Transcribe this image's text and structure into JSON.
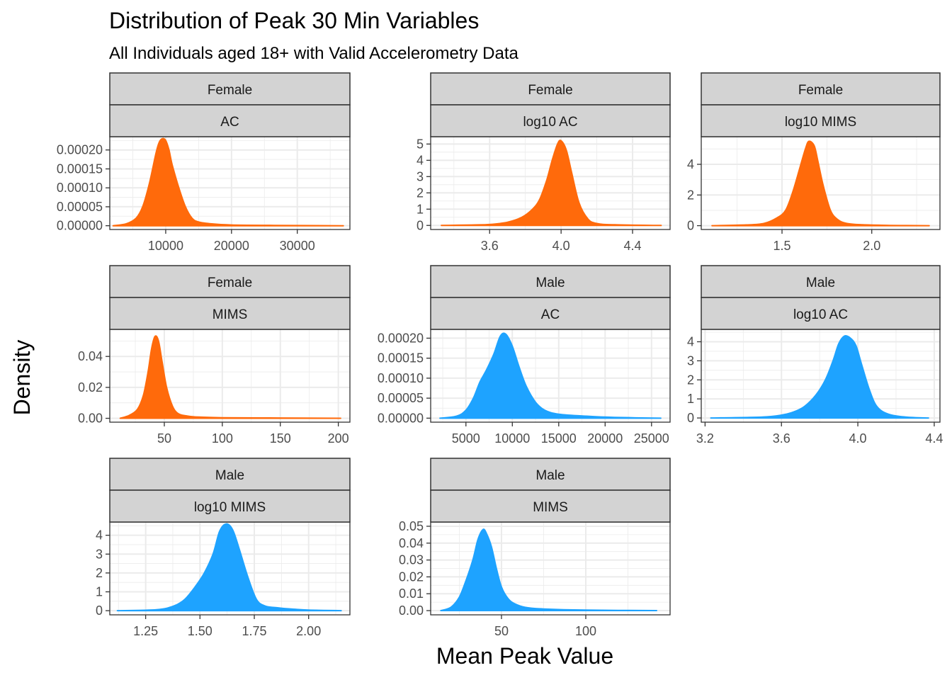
{
  "title": "Distribution of Peak 30 Min Variables",
  "subtitle": "All Individuals aged 18+ with Valid Accelerometry Data",
  "xlabel": "Mean Peak Value",
  "ylabel": "Density",
  "colors": {
    "Female": "#FF6A0B",
    "Male": "#1EA3FF",
    "strip_fill": "#D3D3D3",
    "grid": "#EBEBEB"
  },
  "chart_data": [
    {
      "type": "area",
      "sex": "Female",
      "variable": "AC",
      "xlim": [
        1500,
        38000
      ],
      "ylim": [
        -1e-05,
        0.000235
      ],
      "xticks": [
        10000,
        20000,
        30000
      ],
      "xtick_labels": [
        "10000",
        "20000",
        "30000"
      ],
      "yticks": [
        0,
        5e-05,
        0.0001,
        0.00015,
        0.0002
      ],
      "ytick_labels": [
        "0.00000",
        "0.00005",
        "0.00010",
        "0.00015",
        "0.00020"
      ],
      "x": [
        2000,
        4000,
        5500,
        6500,
        7500,
        8500,
        9000,
        9500,
        10000,
        10500,
        11000,
        12000,
        13000,
        14000,
        15000,
        17000,
        20000,
        25000,
        30000,
        37000
      ],
      "y": [
        0,
        5e-06,
        2e-05,
        5e-05,
        0.00011,
        0.00019,
        0.00022,
        0.00023,
        0.000225,
        0.0002,
        0.00016,
        0.0001,
        5e-05,
        2e-05,
        1e-05,
        5e-06,
        2e-06,
        1e-06,
        5e-07,
        0
      ]
    },
    {
      "type": "area",
      "sex": "Female",
      "variable": "log10 AC",
      "xlim": [
        3.27,
        4.61
      ],
      "ylim": [
        -0.25,
        5.45
      ],
      "xticks": [
        3.6,
        4.0,
        4.4
      ],
      "xtick_labels": [
        "3.6",
        "4.0",
        "4.4"
      ],
      "yticks": [
        0,
        1,
        2,
        3,
        4,
        5
      ],
      "ytick_labels": [
        "0",
        "1",
        "2",
        "3",
        "4",
        "5"
      ],
      "x": [
        3.33,
        3.5,
        3.6,
        3.7,
        3.78,
        3.84,
        3.88,
        3.92,
        3.95,
        3.98,
        4.0,
        4.03,
        4.06,
        4.1,
        4.15,
        4.2,
        4.3,
        4.56
      ],
      "y": [
        0,
        0.03,
        0.06,
        0.2,
        0.5,
        1.0,
        1.6,
        2.8,
        4.0,
        5.0,
        5.2,
        4.6,
        3.2,
        1.4,
        0.4,
        0.12,
        0.04,
        0
      ]
    },
    {
      "type": "area",
      "sex": "Female",
      "variable": "log10 MIMS",
      "xlim": [
        1.05,
        2.38
      ],
      "ylim": [
        -0.25,
        5.8
      ],
      "xticks": [
        1.5,
        2.0
      ],
      "xtick_labels": [
        "1.5",
        "2.0"
      ],
      "yticks": [
        0,
        2,
        4
      ],
      "ytick_labels": [
        "0",
        "2",
        "4"
      ],
      "x": [
        1.11,
        1.3,
        1.4,
        1.47,
        1.52,
        1.56,
        1.6,
        1.63,
        1.65,
        1.68,
        1.7,
        1.73,
        1.77,
        1.81,
        1.86,
        1.95,
        2.1,
        2.32
      ],
      "y": [
        0,
        0.05,
        0.15,
        0.5,
        1.0,
        2.2,
        3.8,
        5.0,
        5.5,
        5.2,
        4.2,
        2.6,
        1.0,
        0.4,
        0.15,
        0.06,
        0.02,
        0
      ]
    },
    {
      "type": "area",
      "sex": "Female",
      "variable": "MIMS",
      "xlim": [
        3,
        210
      ],
      "ylim": [
        -0.0025,
        0.0575
      ],
      "xticks": [
        50,
        100,
        150,
        200
      ],
      "xtick_labels": [
        "50",
        "100",
        "150",
        "200"
      ],
      "yticks": [
        0,
        0.02,
        0.04
      ],
      "ytick_labels": [
        "0.00",
        "0.02",
        "0.04"
      ],
      "x": [
        12,
        20,
        27,
        32,
        36,
        39,
        42,
        45,
        48,
        52,
        57,
        62,
        70,
        80,
        100,
        150,
        202
      ],
      "y": [
        0,
        0.002,
        0.006,
        0.015,
        0.03,
        0.045,
        0.053,
        0.05,
        0.037,
        0.02,
        0.008,
        0.003,
        0.0015,
        0.0008,
        0.0004,
        0.0002,
        0
      ]
    },
    {
      "type": "area",
      "sex": "Male",
      "variable": "AC",
      "xlim": [
        1200,
        27000
      ],
      "ylim": [
        -1e-05,
        0.000222
      ],
      "xticks": [
        5000,
        10000,
        15000,
        20000,
        25000
      ],
      "xtick_labels": [
        "5000",
        "10000",
        "15000",
        "20000",
        "25000"
      ],
      "yticks": [
        0,
        5e-05,
        0.0001,
        0.00015,
        0.0002
      ],
      "ytick_labels": [
        "0.00000",
        "0.00005",
        "0.00010",
        "0.00015",
        "0.00020"
      ],
      "x": [
        2200,
        4000,
        5000,
        5800,
        6500,
        7200,
        8000,
        8700,
        9300,
        10000,
        10700,
        11500,
        12500,
        13500,
        15000,
        18000,
        21000,
        26000
      ],
      "y": [
        0,
        5e-06,
        2e-05,
        5e-05,
        9e-05,
        0.00012,
        0.00016,
        0.000205,
        0.00021,
        0.00018,
        0.00013,
        8e-05,
        4e-05,
        2e-05,
        1e-05,
        5e-06,
        2e-06,
        0
      ]
    },
    {
      "type": "area",
      "sex": "Male",
      "variable": "log10 AC",
      "xlim": [
        3.18,
        4.43
      ],
      "ylim": [
        -0.22,
        4.65
      ],
      "xticks": [
        3.2,
        3.6,
        4.0,
        4.4
      ],
      "xtick_labels": [
        "3.2",
        "3.6",
        "4.0",
        "4.4"
      ],
      "yticks": [
        0,
        1,
        2,
        3,
        4
      ],
      "ytick_labels": [
        "0",
        "1",
        "2",
        "3",
        "4"
      ],
      "x": [
        3.23,
        3.5,
        3.6,
        3.66,
        3.72,
        3.78,
        3.83,
        3.87,
        3.9,
        3.93,
        3.96,
        3.99,
        4.02,
        4.06,
        4.1,
        4.16,
        4.25,
        4.37
      ],
      "y": [
        0,
        0.05,
        0.15,
        0.3,
        0.6,
        1.2,
        2.0,
        3.0,
        3.9,
        4.3,
        4.2,
        3.8,
        2.8,
        1.5,
        0.6,
        0.2,
        0.05,
        0
      ]
    },
    {
      "type": "area",
      "sex": "Male",
      "variable": "log10 MIMS",
      "xlim": [
        1.085,
        2.19
      ],
      "ylim": [
        -0.22,
        4.7
      ],
      "xticks": [
        1.25,
        1.5,
        1.75,
        2.0
      ],
      "xtick_labels": [
        "1.25",
        "1.50",
        "1.75",
        "2.00"
      ],
      "yticks": [
        0,
        1,
        2,
        3,
        4
      ],
      "ytick_labels": [
        "0",
        "1",
        "2",
        "3",
        "4"
      ],
      "x": [
        1.12,
        1.3,
        1.38,
        1.43,
        1.48,
        1.52,
        1.56,
        1.59,
        1.62,
        1.65,
        1.68,
        1.72,
        1.76,
        1.8,
        1.86,
        1.93,
        2.0,
        2.15
      ],
      "y": [
        0,
        0.05,
        0.25,
        0.6,
        1.3,
        2.0,
        3.0,
        4.2,
        4.6,
        4.3,
        3.3,
        1.8,
        0.6,
        0.25,
        0.15,
        0.08,
        0.03,
        0
      ]
    },
    {
      "type": "area",
      "sex": "Male",
      "variable": "MIMS",
      "xlim": [
        8,
        150
      ],
      "ylim": [
        -0.0025,
        0.0525
      ],
      "xticks": [
        50,
        100
      ],
      "xtick_labels": [
        "50",
        "100"
      ],
      "yticks": [
        0,
        0.01,
        0.02,
        0.03,
        0.04,
        0.05
      ],
      "ytick_labels": [
        "0.00",
        "0.01",
        "0.02",
        "0.03",
        "0.04",
        "0.05"
      ],
      "x": [
        14,
        20,
        25,
        29,
        33,
        36,
        39,
        41,
        44,
        47,
        50,
        54,
        58,
        64,
        75,
        100,
        142
      ],
      "y": [
        0,
        0.002,
        0.008,
        0.018,
        0.03,
        0.042,
        0.048,
        0.046,
        0.038,
        0.025,
        0.014,
        0.007,
        0.004,
        0.002,
        0.001,
        0.0003,
        0
      ]
    }
  ]
}
